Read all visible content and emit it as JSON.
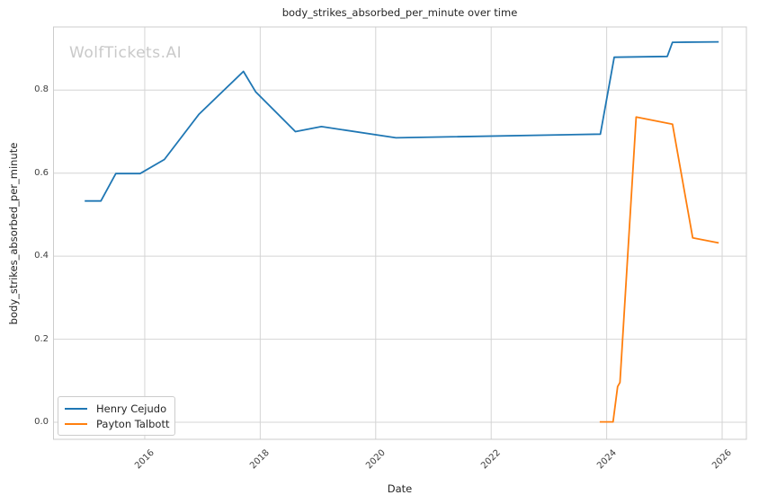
{
  "chart_data": {
    "type": "line",
    "title": "body_strikes_absorbed_per_minute over time",
    "xlabel": "Date",
    "ylabel": "body_strikes_absorbed_per_minute",
    "watermark": "WolfTickets.AI",
    "grid": true,
    "legend_position": "lower left",
    "x_range": [
      2014.42,
      2026.42
    ],
    "y_range": [
      -0.041,
      0.952
    ],
    "x_ticks": [
      {
        "label": "2016",
        "value": 2016
      },
      {
        "label": "2018",
        "value": 2018
      },
      {
        "label": "2020",
        "value": 2020
      },
      {
        "label": "2022",
        "value": 2022
      },
      {
        "label": "2024",
        "value": 2024
      },
      {
        "label": "2026",
        "value": 2026
      }
    ],
    "y_ticks": [
      {
        "label": "0.0",
        "value": 0.0
      },
      {
        "label": "0.2",
        "value": 0.2
      },
      {
        "label": "0.4",
        "value": 0.4
      },
      {
        "label": "0.6",
        "value": 0.6
      },
      {
        "label": "0.8",
        "value": 0.8
      }
    ],
    "series": [
      {
        "name": "Henry Cejudo",
        "color": "#1f77b4",
        "points": [
          [
            2014.96,
            0.533
          ],
          [
            2015.24,
            0.533
          ],
          [
            2015.5,
            0.599
          ],
          [
            2015.92,
            0.599
          ],
          [
            2016.34,
            0.633
          ],
          [
            2016.94,
            0.742
          ],
          [
            2017.71,
            0.845
          ],
          [
            2017.92,
            0.796
          ],
          [
            2018.61,
            0.7
          ],
          [
            2019.06,
            0.712
          ],
          [
            2020.35,
            0.685
          ],
          [
            2023.89,
            0.694
          ],
          [
            2024.13,
            0.879
          ],
          [
            2025.05,
            0.881
          ],
          [
            2025.14,
            0.915
          ],
          [
            2025.94,
            0.916
          ]
        ]
      },
      {
        "name": "Payton Talbott",
        "color": "#ff7f0e",
        "points": [
          [
            2023.88,
            0.001
          ],
          [
            2024.11,
            0.001
          ],
          [
            2024.19,
            0.086
          ],
          [
            2024.23,
            0.096
          ],
          [
            2024.51,
            0.735
          ],
          [
            2025.14,
            0.718
          ],
          [
            2025.49,
            0.444
          ],
          [
            2025.94,
            0.432
          ]
        ]
      }
    ],
    "colors": {
      "grid": "#d4d4d4",
      "spine": "#cccccc",
      "text": "#262626",
      "tick_text": "#3f3f3f",
      "watermark": "#c9c9c9",
      "background": "#ffffff"
    }
  }
}
